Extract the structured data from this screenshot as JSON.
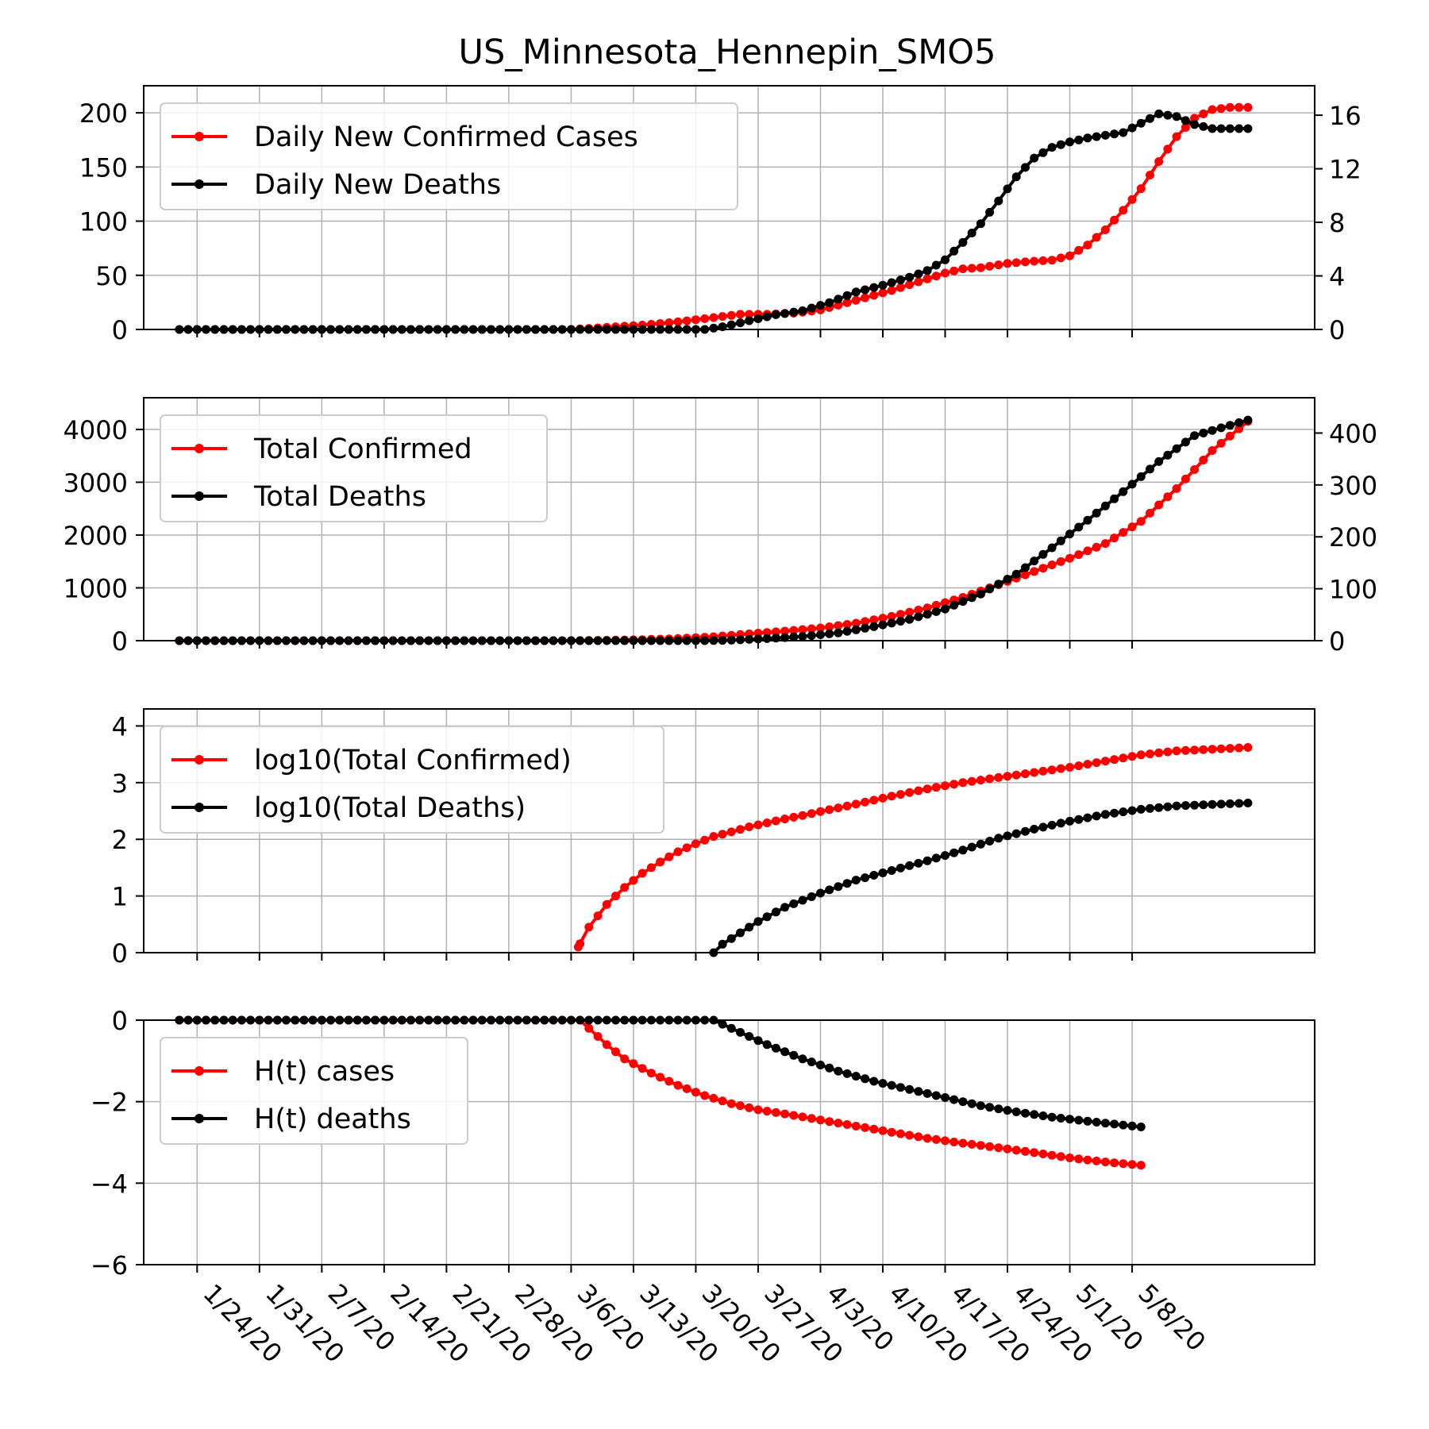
{
  "title": "US_Minnesota_Hennepin_SMO5",
  "x_tick_labels": [
    "1/24/20",
    "1/31/20",
    "2/7/20",
    "2/14/20",
    "2/21/20",
    "2/28/20",
    "3/6/20",
    "3/13/20",
    "3/20/20",
    "3/27/20",
    "4/3/20",
    "4/10/20",
    "4/17/20",
    "4/24/20",
    "5/1/20",
    "5/8/20"
  ],
  "colors": {
    "cases": "#ff0000",
    "deaths": "#000000",
    "grid": "#b0b0b0"
  },
  "chart_data": [
    {
      "type": "line",
      "name": "daily",
      "x_start": "1/22/20",
      "x_count": 110,
      "ylim_left": [
        0,
        225
      ],
      "ylim_right": [
        0,
        18.2
      ],
      "yticks_left": [
        "0",
        "50",
        "100",
        "150",
        "200"
      ],
      "yticks_right": [
        "0",
        "4",
        "8",
        "12",
        "16"
      ],
      "grid": true,
      "legend_position": "top-left",
      "series": [
        {
          "name": "Daily New Confirmed Cases",
          "axis": "left",
          "keypoints": [
            [
              0,
              0
            ],
            [
              44,
              0
            ],
            [
              48,
              2
            ],
            [
              52,
              4
            ],
            [
              56,
              7
            ],
            [
              60,
              11
            ],
            [
              63,
              14
            ],
            [
              66,
              14
            ],
            [
              69,
              15
            ],
            [
              72,
              18
            ],
            [
              76,
              27
            ],
            [
              80,
              36
            ],
            [
              83,
              44
            ],
            [
              86,
              52
            ],
            [
              88,
              56
            ],
            [
              90,
              57
            ],
            [
              93,
              61
            ],
            [
              96,
              63
            ],
            [
              98,
              64
            ],
            [
              100,
              68
            ],
            [
              102,
              78
            ],
            [
              104,
              92
            ],
            [
              106,
              110
            ],
            [
              108,
              130
            ],
            [
              110,
              155
            ],
            [
              112,
              178
            ],
            [
              114,
              195
            ],
            [
              116,
              203
            ],
            [
              118,
              205
            ],
            [
              120,
              205
            ]
          ]
        },
        {
          "name": "Daily New Deaths",
          "axis": "right",
          "keypoints": [
            [
              0,
              0
            ],
            [
              59,
              0
            ],
            [
              61,
              0.2
            ],
            [
              63,
              0.5
            ],
            [
              65,
              0.8
            ],
            [
              67,
              1.1
            ],
            [
              70,
              1.4
            ],
            [
              73,
              2.0
            ],
            [
              76,
              2.8
            ],
            [
              79,
              3.3
            ],
            [
              82,
              3.9
            ],
            [
              84,
              4.4
            ],
            [
              86,
              5.2
            ],
            [
              88,
              6.5
            ],
            [
              90,
              7.9
            ],
            [
              92,
              9.6
            ],
            [
              94,
              11.4
            ],
            [
              96,
              12.8
            ],
            [
              98,
              13.6
            ],
            [
              100,
              14.0
            ],
            [
              102,
              14.3
            ],
            [
              104,
              14.5
            ],
            [
              106,
              14.7
            ],
            [
              108,
              15.4
            ],
            [
              110,
              16.1
            ],
            [
              112,
              15.9
            ],
            [
              114,
              15.3
            ],
            [
              116,
              15.0
            ],
            [
              118,
              15.0
            ],
            [
              120,
              15.0
            ]
          ]
        }
      ]
    },
    {
      "type": "line",
      "name": "total",
      "x_start": "1/22/20",
      "x_count": 110,
      "ylim_left": [
        0,
        4600
      ],
      "ylim_right": [
        0,
        468
      ],
      "yticks_left": [
        "0",
        "1000",
        "2000",
        "3000",
        "4000"
      ],
      "yticks_right": [
        "0",
        "100",
        "200",
        "300",
        "400"
      ],
      "grid": true,
      "legend_position": "top-left",
      "series": [
        {
          "name": "Total Confirmed",
          "axis": "left",
          "keypoints": [
            [
              0,
              0
            ],
            [
              44,
              0
            ],
            [
              48,
              8
            ],
            [
              52,
              20
            ],
            [
              56,
              40
            ],
            [
              60,
              75
            ],
            [
              64,
              130
            ],
            [
              68,
              180
            ],
            [
              72,
              240
            ],
            [
              76,
              330
            ],
            [
              80,
              460
            ],
            [
              84,
              620
            ],
            [
              88,
              820
            ],
            [
              92,
              1060
            ],
            [
              96,
              1310
            ],
            [
              100,
              1560
            ],
            [
              104,
              1840
            ],
            [
              108,
              2260
            ],
            [
              112,
              2880
            ],
            [
              116,
              3600
            ],
            [
              120,
              4150
            ]
          ]
        },
        {
          "name": "Total Deaths",
          "axis": "right",
          "keypoints": [
            [
              0,
              0
            ],
            [
              59,
              0
            ],
            [
              62,
              1
            ],
            [
              66,
              4
            ],
            [
              70,
              8
            ],
            [
              74,
              15
            ],
            [
              78,
              27
            ],
            [
              82,
              41
            ],
            [
              86,
              61
            ],
            [
              90,
              90
            ],
            [
              94,
              128
            ],
            [
              98,
              179
            ],
            [
              102,
              232
            ],
            [
              106,
              287
            ],
            [
              110,
              345
            ],
            [
              114,
              395
            ],
            [
              120,
              425
            ]
          ]
        }
      ]
    },
    {
      "type": "line",
      "name": "log",
      "x_start": "1/22/20",
      "x_count": 110,
      "ylim_left": [
        0,
        4.3
      ],
      "yticks_left": [
        "0",
        "1",
        "2",
        "3",
        "4"
      ],
      "grid": true,
      "legend_position": "top-left",
      "series": [
        {
          "name": "log10(Total Confirmed)",
          "axis": "left",
          "keypoints": [
            [
              44.8,
              0.1
            ],
            [
              46,
              0.45
            ],
            [
              48,
              0.85
            ],
            [
              50,
              1.15
            ],
            [
              52,
              1.4
            ],
            [
              54,
              1.6
            ],
            [
              56,
              1.78
            ],
            [
              58,
              1.92
            ],
            [
              60,
              2.05
            ],
            [
              62,
              2.13
            ],
            [
              64,
              2.22
            ],
            [
              66,
              2.29
            ],
            [
              68,
              2.36
            ],
            [
              70,
              2.42
            ],
            [
              72,
              2.49
            ],
            [
              76,
              2.62
            ],
            [
              80,
              2.76
            ],
            [
              84,
              2.89
            ],
            [
              88,
              3.0
            ],
            [
              92,
              3.09
            ],
            [
              96,
              3.18
            ],
            [
              100,
              3.27
            ],
            [
              104,
              3.38
            ],
            [
              108,
              3.49
            ],
            [
              112,
              3.56
            ],
            [
              120,
              3.62
            ]
          ]
        },
        {
          "name": "log10(Total Deaths)",
          "axis": "left",
          "keypoints": [
            [
              60,
              0.0
            ],
            [
              61,
              0.15
            ],
            [
              63,
              0.35
            ],
            [
              65,
              0.55
            ],
            [
              68,
              0.8
            ],
            [
              72,
              1.05
            ],
            [
              76,
              1.28
            ],
            [
              80,
              1.45
            ],
            [
              84,
              1.62
            ],
            [
              88,
              1.81
            ],
            [
              92,
              2.02
            ],
            [
              96,
              2.18
            ],
            [
              100,
              2.32
            ],
            [
              104,
              2.44
            ],
            [
              108,
              2.53
            ],
            [
              112,
              2.59
            ],
            [
              120,
              2.64
            ]
          ]
        }
      ]
    },
    {
      "type": "line",
      "name": "hazard",
      "x_start": "1/22/20",
      "x_count": 110,
      "ylim_left": [
        -6,
        0
      ],
      "yticks_left": [
        "−6",
        "−4",
        "−2",
        "0"
      ],
      "grid": true,
      "legend_position": "top-left",
      "series": [
        {
          "name": "H(t) cases",
          "axis": "left",
          "keypoints": [
            [
              0,
              0
            ],
            [
              45,
              0
            ],
            [
              46,
              -0.2
            ],
            [
              48,
              -0.6
            ],
            [
              50,
              -0.95
            ],
            [
              53,
              -1.3
            ],
            [
              56,
              -1.6
            ],
            [
              59,
              -1.85
            ],
            [
              62,
              -2.05
            ],
            [
              65,
              -2.2
            ],
            [
              68,
              -2.3
            ],
            [
              72,
              -2.45
            ],
            [
              76,
              -2.6
            ],
            [
              80,
              -2.75
            ],
            [
              84,
              -2.9
            ],
            [
              88,
              -3.02
            ],
            [
              92,
              -3.13
            ],
            [
              96,
              -3.25
            ],
            [
              100,
              -3.38
            ],
            [
              104,
              -3.48
            ],
            [
              108,
              -3.56
            ]
          ]
        },
        {
          "name": "H(t) deaths",
          "axis": "left",
          "keypoints": [
            [
              0,
              0
            ],
            [
              56,
              0
            ],
            [
              60,
              0
            ],
            [
              61,
              -0.1
            ],
            [
              63,
              -0.3
            ],
            [
              66,
              -0.6
            ],
            [
              70,
              -0.95
            ],
            [
              74,
              -1.25
            ],
            [
              78,
              -1.5
            ],
            [
              82,
              -1.7
            ],
            [
              86,
              -1.9
            ],
            [
              90,
              -2.1
            ],
            [
              94,
              -2.25
            ],
            [
              98,
              -2.38
            ],
            [
              102,
              -2.48
            ],
            [
              108,
              -2.62
            ]
          ]
        }
      ]
    }
  ]
}
